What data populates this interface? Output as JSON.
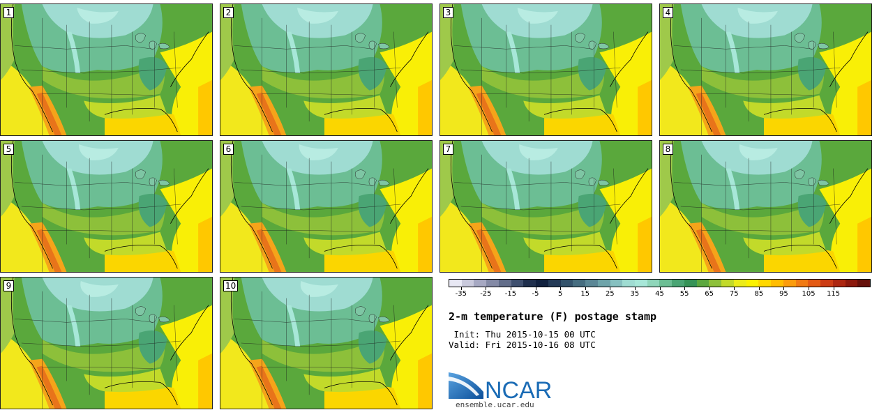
{
  "app": "NCAR Ensemble postage stamp",
  "panels": [
    {
      "member": "1"
    },
    {
      "member": "2"
    },
    {
      "member": "3"
    },
    {
      "member": "4"
    },
    {
      "member": "5"
    },
    {
      "member": "6"
    },
    {
      "member": "7"
    },
    {
      "member": "8"
    },
    {
      "member": "9"
    },
    {
      "member": "10"
    }
  ],
  "colorbar": {
    "colors": [
      "#e8e8f4",
      "#c9c9dc",
      "#a6a8c2",
      "#848aa6",
      "#626d8a",
      "#3f4f6e",
      "#1f2f4d",
      "#10203e",
      "#233a57",
      "#34536c",
      "#466d80",
      "#5b8796",
      "#6ea4aa",
      "#86c0c0",
      "#9fdcd2",
      "#a7e7d8",
      "#8fd6ba",
      "#6cbe94",
      "#4aa574",
      "#369357",
      "#5ca83f",
      "#8dc03a",
      "#c2da2a",
      "#ecec19",
      "#fbf200",
      "#ffd800",
      "#ffbd00",
      "#fb9c0c",
      "#f17a12",
      "#e45a14",
      "#cc3c14",
      "#ad2610",
      "#8c180c",
      "#66100a"
    ],
    "tick_labels": [
      "-35",
      "-25",
      "-15",
      "-5",
      "5",
      "15",
      "25",
      "35",
      "45",
      "55",
      "65",
      "75",
      "85",
      "95",
      "105",
      "115"
    ]
  },
  "title": "2-m temperature (F) postage stamp",
  "init_line": " Init: Thu 2015-10-15 00 UTC",
  "valid_line": "Valid: Fri 2015-10-16 08 UTC",
  "logo": {
    "text": "NCAR",
    "url": "ensemble.ucar.edu",
    "brand_color": "#1a6bb5"
  }
}
